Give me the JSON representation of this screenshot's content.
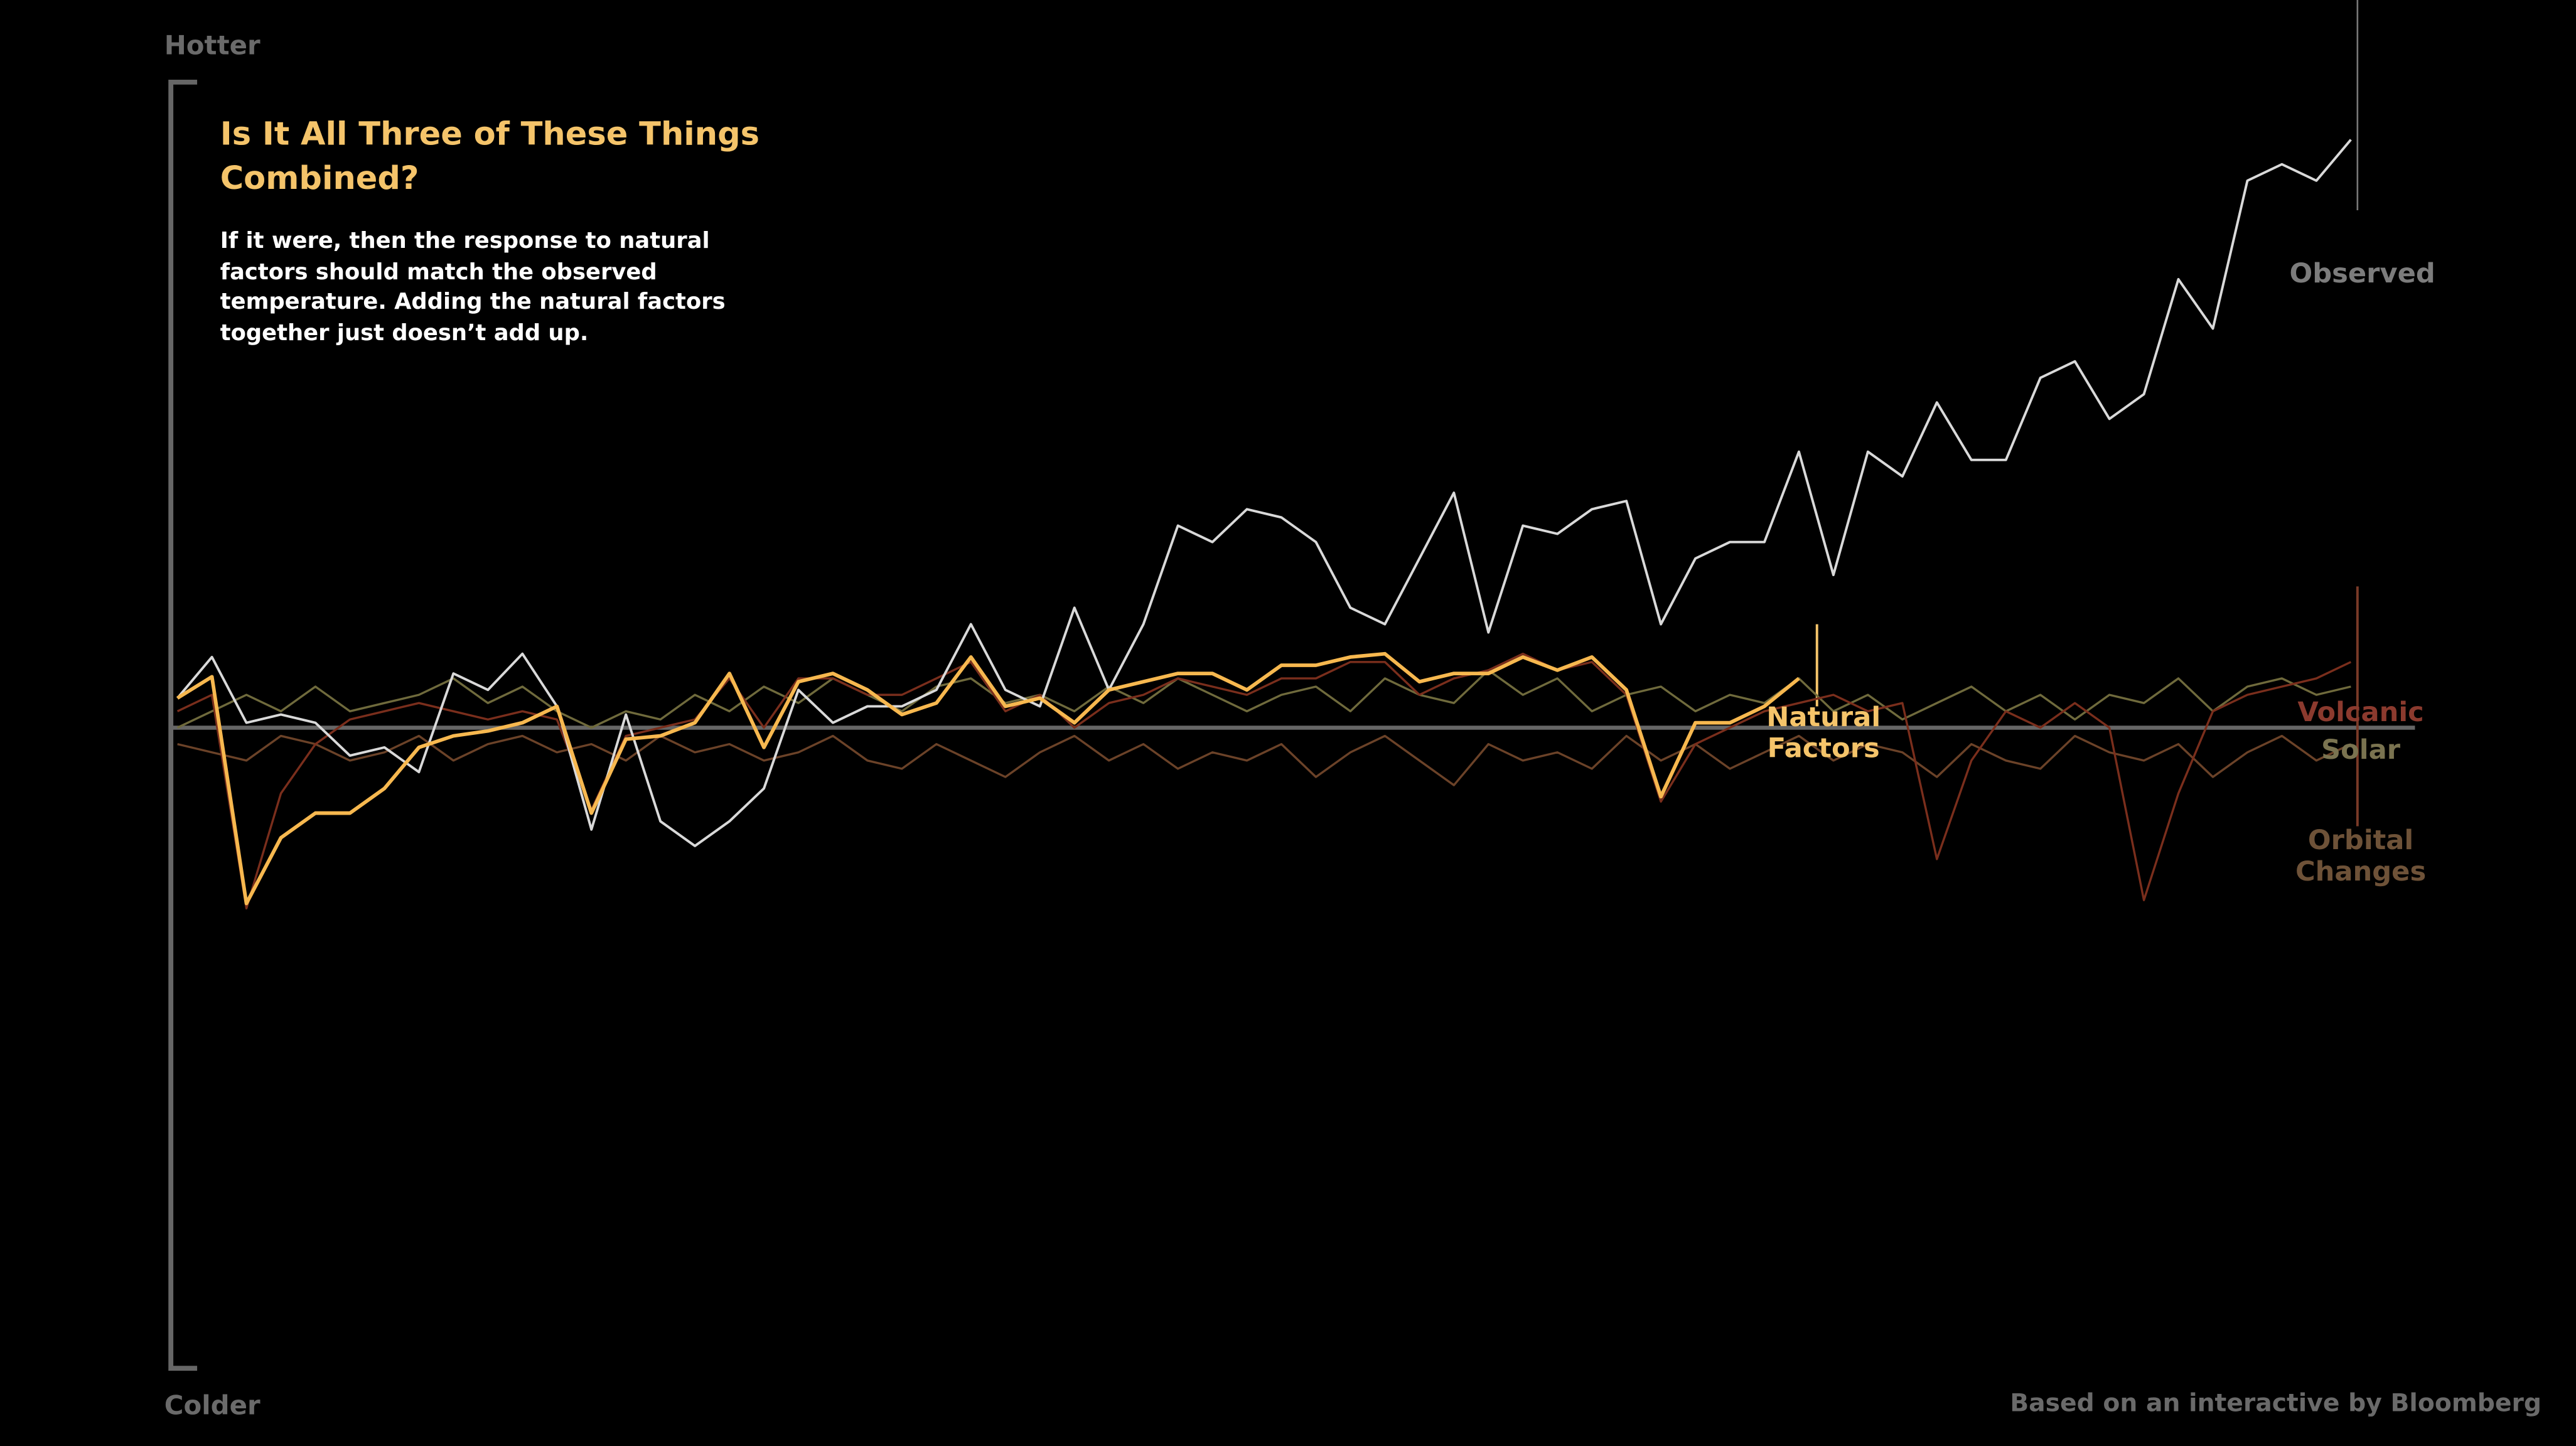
{
  "chart_data": {
    "type": "line",
    "title": "Is It All Three of These Things Combined?",
    "subtitle": "If it were, then the response to natural factors should match the observed temperature. Adding the natural factors together just doesn’t add up.",
    "y_top_label": "Hotter",
    "y_bottom_label": "Colder",
    "source": "Based on an interactive by Bloomberg",
    "ylim": [
      -3.9,
      3.93
    ],
    "series": [
      {
        "name": "Observed",
        "color": "#d9d9d9",
        "label_color": "#7c7c7c",
        "values": [
          0.18,
          0.43,
          0.03,
          0.08,
          0.03,
          -0.17,
          -0.12,
          -0.27,
          0.33,
          0.23,
          0.45,
          0.13,
          -0.62,
          0.08,
          -0.57,
          -0.72,
          -0.57,
          -0.37,
          0.23,
          0.03,
          0.13,
          0.13,
          0.23,
          0.63,
          0.23,
          0.13,
          0.73,
          0.23,
          0.63,
          1.23,
          1.13,
          1.33,
          1.28,
          1.13,
          0.73,
          0.63,
          1.03,
          1.43,
          0.58,
          1.23,
          1.18,
          1.33,
          1.38,
          0.63,
          1.03,
          1.13,
          1.13,
          1.68,
          0.93,
          1.68,
          1.53,
          1.98,
          1.63,
          1.63,
          2.13,
          2.23,
          1.88,
          2.03,
          2.73,
          2.43,
          3.33,
          3.43,
          3.33,
          3.58
        ]
      },
      {
        "name": "Natural Factors",
        "color": "#f7b84f",
        "label_color": "#f5c46a",
        "values": [
          0.18,
          0.31,
          -1.07,
          -0.67,
          -0.52,
          -0.52,
          -0.37,
          -0.12,
          -0.05,
          -0.02,
          0.03,
          0.13,
          -0.52,
          -0.07,
          -0.05,
          0.03,
          0.33,
          -0.12,
          0.28,
          0.33,
          0.23,
          0.08,
          0.15,
          0.43,
          0.13,
          0.18,
          0.03,
          0.23,
          0.28,
          0.33,
          0.33,
          0.23,
          0.38,
          0.38,
          0.43,
          0.45,
          0.28,
          0.33,
          0.33,
          0.43,
          0.35,
          0.43,
          0.23,
          -0.42,
          0.03,
          0.03,
          0.13,
          0.3,
          null,
          null,
          null,
          null,
          null,
          null,
          null,
          null,
          null,
          null,
          null,
          null,
          null,
          null,
          null,
          null
        ]
      },
      {
        "name": "Volcanic",
        "color": "#7a2e1c",
        "label_color": "#8b3a2e",
        "values": [
          0.1,
          0.2,
          -1.1,
          -0.4,
          -0.1,
          0.05,
          0.1,
          0.15,
          0.1,
          0.05,
          0.1,
          0.05,
          -0.5,
          -0.05,
          0.0,
          0.05,
          0.3,
          0.0,
          0.3,
          0.3,
          0.2,
          0.2,
          0.3,
          0.4,
          0.1,
          0.2,
          0.0,
          0.15,
          0.2,
          0.3,
          0.25,
          0.2,
          0.3,
          0.3,
          0.4,
          0.4,
          0.2,
          0.3,
          0.35,
          0.45,
          0.35,
          0.4,
          0.2,
          -0.45,
          -0.1,
          0.0,
          0.1,
          0.15,
          0.2,
          0.1,
          0.15,
          -0.8,
          -0.2,
          0.1,
          0.0,
          0.15,
          0.0,
          -1.05,
          -0.4,
          0.1,
          0.2,
          0.25,
          0.3,
          0.4
        ]
      },
      {
        "name": "Solar",
        "color": "#6f6a3c",
        "label_color": "#7a7350",
        "values": [
          0.0,
          0.1,
          0.2,
          0.1,
          0.25,
          0.1,
          0.15,
          0.2,
          0.3,
          0.15,
          0.25,
          0.1,
          0.0,
          0.1,
          0.05,
          0.2,
          0.1,
          0.25,
          0.15,
          0.3,
          0.2,
          0.1,
          0.25,
          0.3,
          0.15,
          0.2,
          0.1,
          0.25,
          0.15,
          0.3,
          0.2,
          0.1,
          0.2,
          0.25,
          0.1,
          0.3,
          0.2,
          0.15,
          0.35,
          0.2,
          0.3,
          0.1,
          0.2,
          0.25,
          0.1,
          0.2,
          0.15,
          0.3,
          0.1,
          0.2,
          0.05,
          0.15,
          0.25,
          0.1,
          0.2,
          0.05,
          0.2,
          0.15,
          0.3,
          0.1,
          0.25,
          0.3,
          0.2,
          0.25
        ]
      },
      {
        "name": "Orbital Changes",
        "color": "#6b4228",
        "label_color": "#6e5238",
        "values": [
          -0.1,
          -0.15,
          -0.2,
          -0.05,
          -0.1,
          -0.2,
          -0.15,
          -0.05,
          -0.2,
          -0.1,
          -0.05,
          -0.15,
          -0.1,
          -0.2,
          -0.05,
          -0.15,
          -0.1,
          -0.2,
          -0.15,
          -0.05,
          -0.2,
          -0.25,
          -0.1,
          -0.2,
          -0.3,
          -0.15,
          -0.05,
          -0.2,
          -0.1,
          -0.25,
          -0.15,
          -0.2,
          -0.1,
          -0.3,
          -0.15,
          -0.05,
          -0.2,
          -0.35,
          -0.1,
          -0.2,
          -0.15,
          -0.25,
          -0.05,
          -0.2,
          -0.1,
          -0.25,
          -0.15,
          -0.05,
          -0.2,
          -0.1,
          -0.15,
          -0.3,
          -0.1,
          -0.2,
          -0.25,
          -0.05,
          -0.15,
          -0.2,
          -0.1,
          -0.3,
          -0.15,
          -0.05,
          -0.2,
          -0.1
        ]
      }
    ]
  }
}
